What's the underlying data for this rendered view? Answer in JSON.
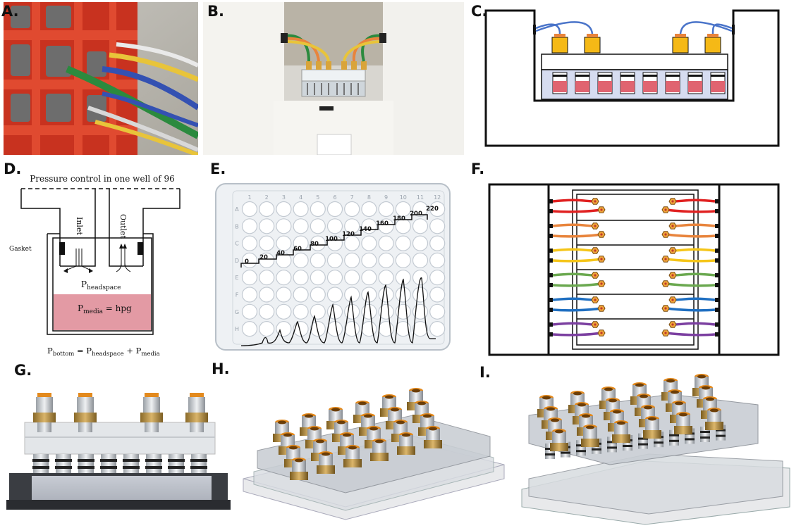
{
  "panels": {
    "A": {
      "label": "A."
    },
    "B": {
      "label": "B."
    },
    "C": {
      "label": "C."
    },
    "D": {
      "label": "D.",
      "title": "Pressure control in one well of 96",
      "inlet": "Inlet",
      "outlet": "Outlet",
      "gasket": "Gasket",
      "headspace": {
        "main": "P",
        "sub": "headspace"
      },
      "media": {
        "main": "P",
        "sub": "media",
        "suffix": " = hpg"
      },
      "bottom_eq": {
        "p1": "P",
        "s1": "bottom",
        "eq": " = P",
        "s2": "headspace",
        "plus": " + P",
        "s3": "media"
      }
    },
    "E": {
      "label": "E.",
      "col_labels": [
        "1",
        "2",
        "3",
        "4",
        "5",
        "6",
        "7",
        "8",
        "9",
        "10",
        "11",
        "12"
      ],
      "row_labels": [
        "A",
        "B",
        "C",
        "D",
        "E",
        "F",
        "G",
        "H"
      ],
      "step_values": [
        "0",
        "20",
        "40",
        "60",
        "80",
        "100",
        "120",
        "140",
        "160",
        "180",
        "200",
        "220"
      ]
    },
    "F": {
      "label": "F.",
      "tube_colors": [
        "#e02020",
        "#e8843c",
        "#f5c518",
        "#6aa84f",
        "#1f6fc1",
        "#7b3fa0"
      ]
    },
    "G": {
      "label": "G."
    },
    "H": {
      "label": "H."
    },
    "I": {
      "label": "I."
    }
  }
}
